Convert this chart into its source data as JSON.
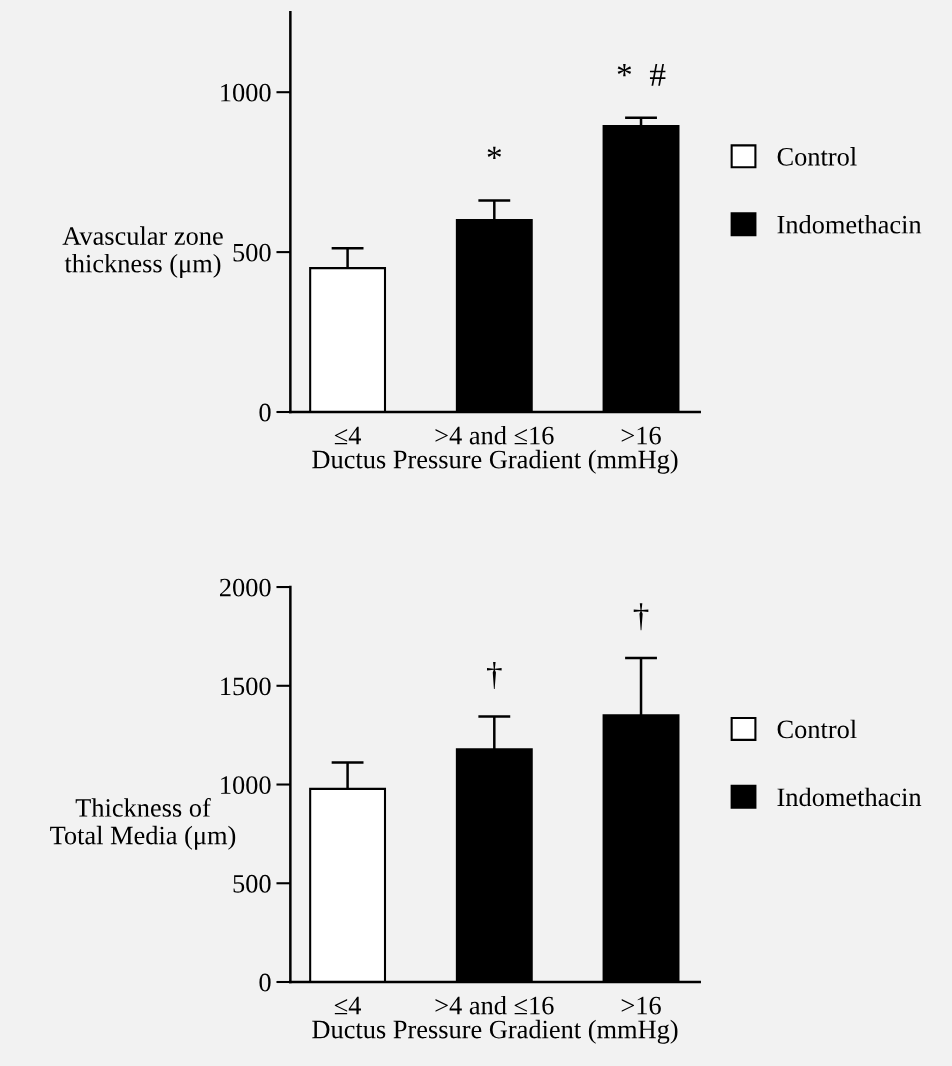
{
  "chart_data": [
    {
      "type": "bar",
      "ylabel": "Avascular zone\nthickness (μm)",
      "xlabel": "Ductus Pressure Gradient (mmHg)",
      "categories": [
        "≤4",
        ">4 and ≤16",
        ">16"
      ],
      "series": [
        {
          "name": "Control",
          "color": "#ffffff",
          "values": [
            450,
            null,
            null
          ],
          "errors": [
            [
              450,
              512
            ],
            null,
            null
          ]
        },
        {
          "name": "Indomethacin",
          "color": "#000000",
          "values": [
            null,
            600,
            894
          ],
          "errors": [
            null,
            [
              600,
              661
            ],
            [
              894,
              920
            ]
          ]
        }
      ],
      "ylim": [
        0,
        1250
      ],
      "yticks": [
        0,
        500,
        1000
      ],
      "grid": false,
      "legend": "right",
      "annotations": [
        "*",
        "*  #"
      ]
    },
    {
      "type": "bar",
      "ylabel": "Thickness of\nTotal Media (μm)",
      "xlabel": "Ductus Pressure Gradient (mmHg)",
      "categories": [
        "≤4",
        ">4 and ≤16",
        ">16"
      ],
      "series": [
        {
          "name": "Control",
          "color": "#ffffff",
          "values": [
            978,
            null,
            null
          ],
          "errors": [
            [
              978,
              1111
            ],
            null,
            null
          ]
        },
        {
          "name": "Indomethacin",
          "color": "#000000",
          "values": [
            null,
            1178,
            1351
          ],
          "errors": [
            null,
            [
              1178,
              1344
            ],
            [
              1351,
              1641
            ]
          ]
        }
      ],
      "ylim": [
        0,
        2000
      ],
      "yticks": [
        0,
        500,
        1000,
        1500,
        2000
      ],
      "grid": false,
      "legend": "right",
      "annotations": [
        "†",
        "†"
      ]
    }
  ]
}
